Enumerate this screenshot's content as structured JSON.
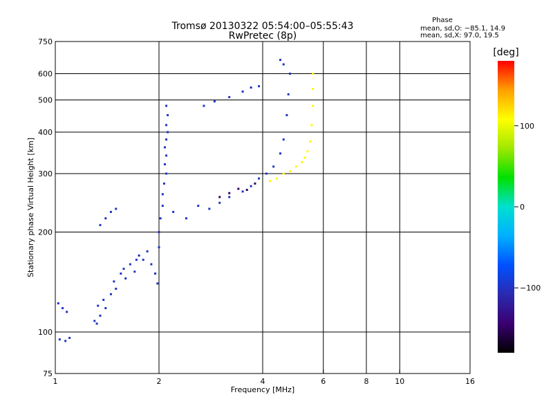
{
  "header": {
    "title_line1": "Tromsø 20130322 05:54:00–05:55:43",
    "title_line2": "RwPretec (8p)"
  },
  "phase_box": {
    "heading": "Phase",
    "line1": "mean, sd,O: −85.1, 14.9",
    "line2": "mean, sd,X:  97.0, 19.5"
  },
  "colorbar": {
    "unit_label": "[deg]",
    "range": [
      -180,
      180
    ],
    "ticks": [
      {
        "value": 100,
        "label": "100"
      },
      {
        "value": 0,
        "label": "0"
      },
      {
        "value": -100,
        "label": "−100"
      }
    ],
    "stops": [
      "#000000",
      "#3a0070",
      "#2a2ab0",
      "#0050ff",
      "#00b0ff",
      "#00e0d0",
      "#00e000",
      "#a0e800",
      "#ffff00",
      "#ffa000",
      "#ff0000"
    ]
  },
  "chart_data": {
    "type": "scatter",
    "title": "Tromsø 20130322 05:54:00–05:55:43",
    "subtitle": "RwPretec (8p)",
    "xlabel": "Frequency [MHz]",
    "ylabel": "Stationary phase Virtual Height [km]",
    "x_scale": "log",
    "y_scale": "log",
    "xlim": [
      1,
      16
    ],
    "ylim": [
      75,
      750
    ],
    "x_ticks": [
      {
        "value": 1,
        "label": "1"
      },
      {
        "value": 2,
        "label": "2"
      },
      {
        "value": 4,
        "label": "4"
      },
      {
        "value": 6,
        "label": "6"
      },
      {
        "value": 8,
        "label": "8"
      },
      {
        "value": 10,
        "label": "10"
      },
      {
        "value": 16,
        "label": "16"
      }
    ],
    "y_ticks": [
      {
        "value": 75,
        "label": "75"
      },
      {
        "value": 100,
        "label": "100"
      },
      {
        "value": 200,
        "label": "200"
      },
      {
        "value": 300,
        "label": "300"
      },
      {
        "value": 400,
        "label": "400"
      },
      {
        "value": 500,
        "label": "500"
      },
      {
        "value": 600,
        "label": "600"
      },
      {
        "value": 750,
        "label": "750"
      }
    ],
    "x_grid": [
      2,
      4,
      6,
      8,
      10
    ],
    "y_grid": [
      100,
      200,
      300,
      400,
      500,
      600
    ],
    "series": [
      {
        "color_value": -100,
        "points": [
          [
            1.02,
            122
          ],
          [
            1.05,
            118
          ],
          [
            1.08,
            115
          ],
          [
            1.03,
            95
          ],
          [
            1.07,
            94
          ],
          [
            1.1,
            96
          ],
          [
            1.3,
            108
          ],
          [
            1.32,
            106
          ],
          [
            1.35,
            112
          ],
          [
            1.33,
            120
          ],
          [
            1.38,
            125
          ],
          [
            1.4,
            118
          ],
          [
            1.45,
            130
          ],
          [
            1.5,
            135
          ],
          [
            1.48,
            142
          ],
          [
            1.55,
            150
          ],
          [
            1.6,
            145
          ],
          [
            1.58,
            155
          ],
          [
            1.65,
            160
          ],
          [
            1.7,
            152
          ],
          [
            1.72,
            165
          ],
          [
            1.75,
            170
          ],
          [
            1.8,
            165
          ],
          [
            1.85,
            175
          ],
          [
            1.9,
            160
          ],
          [
            1.95,
            150
          ],
          [
            1.98,
            140
          ],
          [
            2.0,
            180
          ],
          [
            2.0,
            200
          ],
          [
            2.02,
            220
          ],
          [
            2.05,
            240
          ],
          [
            2.05,
            260
          ],
          [
            2.07,
            280
          ],
          [
            2.1,
            300
          ],
          [
            2.08,
            320
          ],
          [
            2.1,
            340
          ],
          [
            2.08,
            360
          ],
          [
            2.1,
            380
          ],
          [
            2.12,
            400
          ],
          [
            2.1,
            420
          ],
          [
            2.12,
            450
          ],
          [
            2.1,
            480
          ],
          [
            2.2,
            230
          ],
          [
            2.4,
            220
          ],
          [
            2.6,
            240
          ],
          [
            2.8,
            235
          ],
          [
            3.0,
            245
          ],
          [
            3.2,
            255
          ],
          [
            3.5,
            265
          ],
          [
            3.7,
            275
          ],
          [
            3.9,
            290
          ],
          [
            4.1,
            300
          ],
          [
            4.3,
            315
          ],
          [
            4.5,
            345
          ],
          [
            4.6,
            380
          ],
          [
            4.7,
            450
          ],
          [
            4.75,
            520
          ],
          [
            4.8,
            600
          ],
          [
            4.6,
            640
          ],
          [
            4.5,
            660
          ],
          [
            1.4,
            220
          ],
          [
            1.45,
            230
          ],
          [
            1.5,
            235
          ],
          [
            1.35,
            210
          ],
          [
            2.7,
            480
          ],
          [
            2.9,
            495
          ],
          [
            3.2,
            510
          ],
          [
            3.5,
            530
          ],
          [
            3.7,
            545
          ],
          [
            3.9,
            550
          ]
        ]
      },
      {
        "color_value": 110,
        "points": [
          [
            4.2,
            285
          ],
          [
            4.4,
            290
          ],
          [
            4.6,
            300
          ],
          [
            4.8,
            305
          ],
          [
            5.0,
            315
          ],
          [
            5.2,
            325
          ],
          [
            5.3,
            335
          ],
          [
            5.4,
            350
          ],
          [
            5.5,
            375
          ],
          [
            5.55,
            420
          ],
          [
            5.6,
            480
          ],
          [
            5.6,
            540
          ],
          [
            5.6,
            600
          ]
        ]
      },
      {
        "color_value": -150,
        "points": [
          [
            3.0,
            255
          ],
          [
            3.2,
            262
          ],
          [
            3.4,
            270
          ],
          [
            3.6,
            268
          ],
          [
            3.8,
            280
          ]
        ]
      }
    ]
  }
}
